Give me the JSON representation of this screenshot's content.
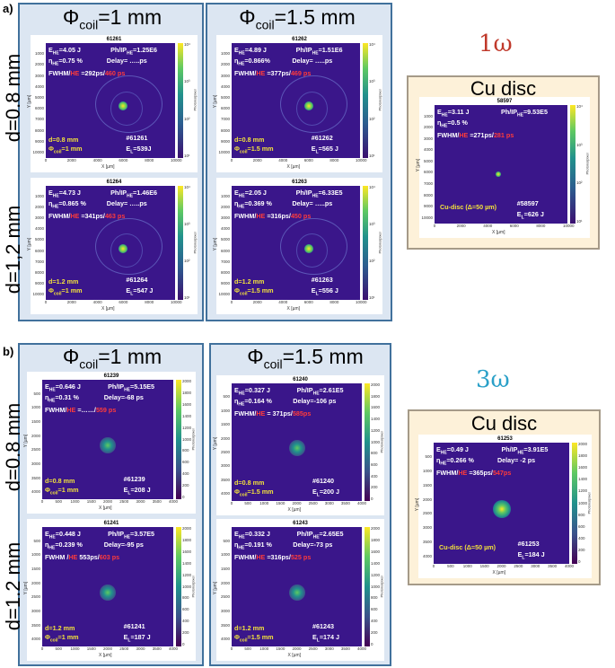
{
  "panel_a": {
    "label": "a)",
    "col1": {
      "phi": "Φ",
      "sub": "coil",
      "rest": "=1 mm"
    },
    "col2": {
      "phi": "Φ",
      "sub": "coil",
      "rest": "=1.5 mm"
    },
    "row1": "d=0.8 mm",
    "row2": "d=1,2 mm",
    "omega": "1ω",
    "cu_title": "Cu disc",
    "colorbar_label": "Photons/pixel",
    "xlabel": "X [µm]",
    "ylabel": "Y [µm]",
    "xticks": [
      "0",
      "2000",
      "4000",
      "6000",
      "8000",
      "10000"
    ],
    "yticks": [
      "1000",
      "2000",
      "3000",
      "4000",
      "5000",
      "6000",
      "7000",
      "8000",
      "9000",
      "10000"
    ],
    "cbticks": [
      "10⁴",
      "10³",
      "10²",
      "10¹"
    ],
    "shots": [
      {
        "id": "61261",
        "E": "=4.05 J",
        "Ph": "=1.25E6",
        "eta": "=0.75 %",
        "delay": "Delay= …..ps",
        "fwhm_lbl": "FWHM/",
        "fwhm_hot": "HE",
        "fwhm_val": " =292ps/",
        "fwhm_red": "460 ps",
        "d": "d=0.8 mm",
        "phi": "Φ",
        "phi_sub": "coil",
        "phi_val": "=1 mm",
        "shot": "#61261",
        "EL": "=539J"
      },
      {
        "id": "61262",
        "E": "=4.89 J",
        "Ph": "=1.51E6",
        "eta": "=0.866%",
        "delay": "Delay= …..ps",
        "fwhm_lbl": "FWHM/",
        "fwhm_hot": "HE",
        "fwhm_val": " =377ps/",
        "fwhm_red": "469 ps",
        "d": "d=0.8 mm",
        "phi": "Φ",
        "phi_sub": "coil",
        "phi_val": "=1.5 mm",
        "shot": "#61262",
        "EL": "=565 J"
      },
      {
        "id": "61264",
        "E": "=4.73 J",
        "Ph": "=1.46E6",
        "eta": "=0.865 %",
        "delay": "Delay= …..ps",
        "fwhm_lbl": "FWHM/",
        "fwhm_hot": "HE",
        "fwhm_val": " =341ps/",
        "fwhm_red": "463 ps",
        "d": "d=1.2 mm",
        "phi": "Φ",
        "phi_sub": "coil",
        "phi_val": "=1 mm",
        "shot": "#61264",
        "EL": "=547 J"
      },
      {
        "id": "61263",
        "E": "=2.05 J",
        "Ph": "=6.33E5",
        "eta": "=0.369 %",
        "delay": "Delay= …..ps",
        "fwhm_lbl": "FWHM/",
        "fwhm_hot": "HE",
        "fwhm_val": " =316ps/",
        "fwhm_red": "450 ps",
        "d": "d=1.2 mm",
        "phi": "Φ",
        "phi_sub": "coil",
        "phi_val": "=1.5 mm",
        "shot": "#61263",
        "EL": "=556 J"
      }
    ],
    "cu": {
      "id": "58597",
      "E": "=3.11 J",
      "Ph": "=9.53E5",
      "eta": "=0.5 %",
      "fwhm_lbl": "FWHM/",
      "fwhm_hot": "HE",
      "fwhm_val": " =271ps/",
      "fwhm_red": "281 ps",
      "disc": "Cu-disc (Δ=50 µm)",
      "shot": "#58597",
      "EL": "=626 J"
    }
  },
  "panel_b": {
    "label": "b)",
    "col1": {
      "phi": "Φ",
      "sub": "coil",
      "rest": "=1 mm"
    },
    "col2": {
      "phi": "Φ",
      "sub": "coil",
      "rest": "=1.5 mm"
    },
    "row1": "d=0.8 mm",
    "row2": "d=1.2 mm",
    "omega": "3ω",
    "cu_title": "Cu disc",
    "colorbar_label": "Photons/pixel",
    "xlabel": "X [µm]",
    "ylabel": "Y [µm]",
    "xticks": [
      "0",
      "500",
      "1000",
      "1500",
      "2000",
      "2500",
      "3000",
      "3500",
      "4000"
    ],
    "yticks": [
      "500",
      "1000",
      "1500",
      "2000",
      "2500",
      "3000",
      "3500",
      "4000"
    ],
    "cbticks": [
      "2000",
      "1800",
      "1600",
      "1400",
      "1200",
      "1000",
      "800",
      "600",
      "400",
      "200",
      "0"
    ],
    "shots": [
      {
        "id": "61239",
        "E": "=0.646 J",
        "Ph": "=5.15E5",
        "eta": "=0.31 %",
        "delay": "Delay=-68 ps",
        "fwhm_lbl": "FWHM/",
        "fwhm_hot": "HE",
        "fwhm_val": " =……/",
        "fwhm_red": "559 ps",
        "d": "d=0.8 mm",
        "phi": "Φ",
        "phi_sub": "coil",
        "phi_val": "=1 mm",
        "shot": "#61239",
        "EL": "=208 J"
      },
      {
        "id": "61240",
        "E": "=0.327 J",
        "Ph": "=2.61E5",
        "eta": "=0.164 %",
        "delay": "Delay=-106 ps",
        "fwhm_lbl": "FWHM/",
        "fwhm_hot": "HE",
        "fwhm_val": " = 371ps/",
        "fwhm_red": "585ps",
        "d": "d=0.8 mm",
        "phi": "Φ",
        "phi_sub": "coil",
        "phi_val": "=1.5 mm",
        "shot": "#61240",
        "EL": "=200 J"
      },
      {
        "id": "61241",
        "E": "=0.448 J",
        "Ph": "=3.57E5",
        "eta": "=0.239 %",
        "delay": "Delay=-95 ps",
        "fwhm_lbl": "FWHM /",
        "fwhm_hot": "HE",
        "fwhm_val": " 553ps/",
        "fwhm_red": "603 ps",
        "d": "d=1.2 mm",
        "phi": "Φ",
        "phi_sub": "coil",
        "phi_val": "=1 mm",
        "shot": "#61241",
        "EL": "=187 J"
      },
      {
        "id": "61243",
        "E": "=0.332 J",
        "Ph": "=2.65E5",
        "eta": "=0.191 %",
        "delay": "Delay=-73 ps",
        "fwhm_lbl": "FWHM/",
        "fwhm_hot": "HE",
        "fwhm_val": " =316ps/",
        "fwhm_red": "525 ps",
        "d": "d=1.2 mm",
        "phi": "Φ",
        "phi_sub": "coil",
        "phi_val": "=1.5 mm",
        "shot": "#61243",
        "EL": "=174 J"
      }
    ],
    "cu": {
      "id": "61253",
      "E": "=0.49 J",
      "Ph": "=3.91E5",
      "eta": "=0.266 %",
      "delay": "Delay= -2 ps",
      "fwhm_lbl": "FWHM/",
      "fwhm_hot": "HE",
      "fwhm_val": " =365ps/",
      "fwhm_red": "547ps",
      "disc": "Cu-disc (Δ=50 µm)",
      "shot": "#61253",
      "EL": "=184 J"
    }
  },
  "colors": {
    "box_blue": "#dce6f2",
    "box_border": "#41719c",
    "cu_box": "#fdf1d9",
    "omega1": "#c0392b",
    "omega3": "#2aa0c8",
    "plot_bg": "#3a168a"
  }
}
